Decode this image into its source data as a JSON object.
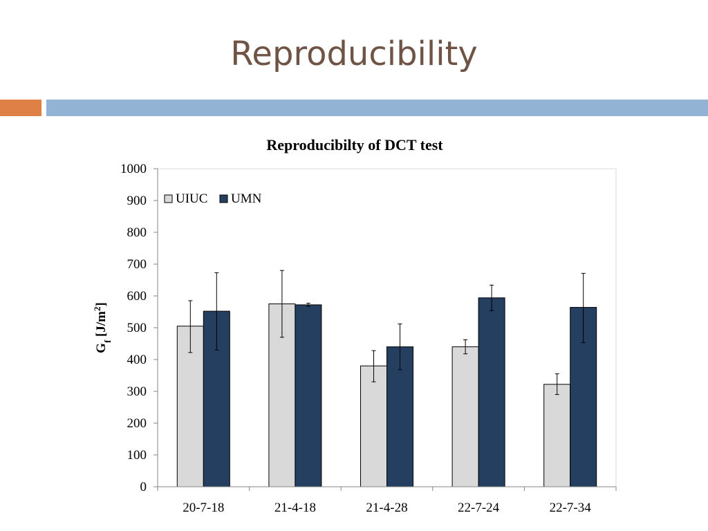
{
  "slide": {
    "title": "Reproducibility"
  },
  "colors": {
    "title_text": "#6f5446",
    "accent_orange": "#df8146",
    "accent_blue": "#93b3d5",
    "uiuc_fill": "#d9d9d9",
    "umn_fill": "#243f60"
  },
  "chart_data": {
    "type": "bar",
    "title": "Reproducibilty of DCT test",
    "ylabel_main": "G",
    "ylabel_sub": "f",
    "ylabel_rest": " [J/m",
    "ylabel_sup": "2",
    "ylabel_end": "]",
    "xlabel": "",
    "ylim": [
      0,
      1000
    ],
    "yticks": [
      0,
      100,
      200,
      300,
      400,
      500,
      600,
      700,
      800,
      900,
      1000
    ],
    "categories": [
      "20-7-18",
      "21-4-18",
      "21-4-28",
      "22-7-24",
      "22-7-34"
    ],
    "series": [
      {
        "name": "UIUC",
        "color": "#d9d9d9",
        "values": [
          505,
          575,
          380,
          440,
          322
        ],
        "error_low": [
          422,
          470,
          330,
          418,
          290
        ],
        "error_high": [
          585,
          680,
          428,
          462,
          355
        ]
      },
      {
        "name": "UMN",
        "color": "#243f60",
        "values": [
          552,
          572,
          440,
          594,
          564
        ],
        "error_low": [
          430,
          567,
          368,
          554,
          453
        ],
        "error_high": [
          673,
          577,
          512,
          634,
          671
        ]
      }
    ],
    "legend_position": "top-left",
    "grid": false
  }
}
